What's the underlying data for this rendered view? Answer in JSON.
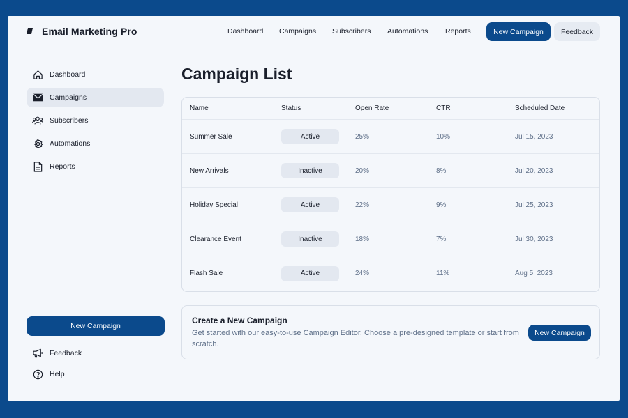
{
  "app": {
    "title": "Email Marketing Pro"
  },
  "top_nav": {
    "links": [
      "Dashboard",
      "Campaigns",
      "Subscribers",
      "Automations",
      "Reports"
    ],
    "primary_button": "New Campaign",
    "secondary_button": "Feedback"
  },
  "sidebar": {
    "items": [
      {
        "label": "Dashboard",
        "icon": "home-icon"
      },
      {
        "label": "Campaigns",
        "icon": "mail-icon",
        "active": true
      },
      {
        "label": "Subscribers",
        "icon": "users-icon"
      },
      {
        "label": "Automations",
        "icon": "gear-icon"
      },
      {
        "label": "Reports",
        "icon": "document-icon"
      }
    ],
    "cta": "New Campaign",
    "footer_items": [
      {
        "label": "Feedback",
        "icon": "megaphone-icon"
      },
      {
        "label": "Help",
        "icon": "help-icon"
      }
    ]
  },
  "main": {
    "title": "Campaign List",
    "table": {
      "columns": [
        "Name",
        "Status",
        "Open Rate",
        "CTR",
        "Scheduled Date"
      ],
      "rows": [
        {
          "name": "Summer Sale",
          "status": "Active",
          "open_rate": "25%",
          "ctr": "10%",
          "date": "Jul 15, 2023"
        },
        {
          "name": "New Arrivals",
          "status": "Inactive",
          "open_rate": "20%",
          "ctr": "8%",
          "date": "Jul 20, 2023"
        },
        {
          "name": "Holiday Special",
          "status": "Active",
          "open_rate": "22%",
          "ctr": "9%",
          "date": "Jul 25, 2023"
        },
        {
          "name": "Clearance Event",
          "status": "Inactive",
          "open_rate": "18%",
          "ctr": "7%",
          "date": "Jul 30, 2023"
        },
        {
          "name": "Flash Sale",
          "status": "Active",
          "open_rate": "24%",
          "ctr": "11%",
          "date": "Aug 5, 2023"
        }
      ]
    },
    "create_card": {
      "title": "Create a New Campaign",
      "description": "Get started with our easy-to-use Campaign Editor. Choose a pre-designed template or start from scratch.",
      "button": "New Campaign"
    }
  },
  "colors": {
    "brand": "#0b4a8c",
    "background": "#f4f7fb",
    "muted_text": "#5f7089",
    "badge_bg": "#e3e8f0"
  }
}
